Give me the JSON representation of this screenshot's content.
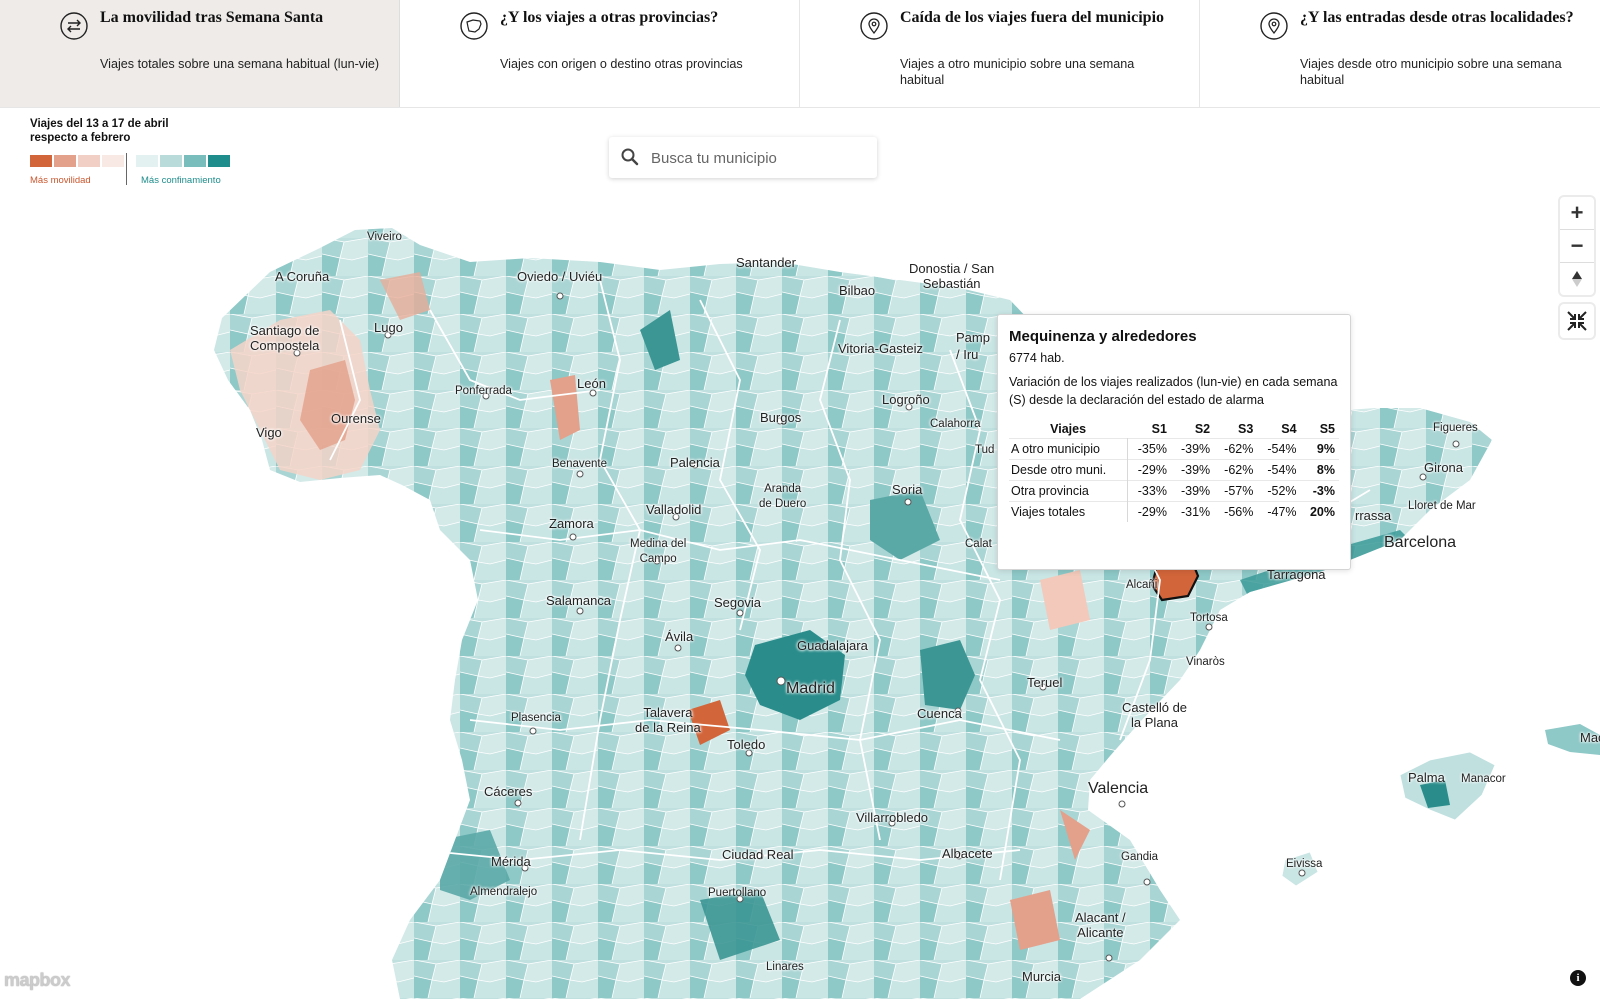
{
  "tabs": [
    {
      "title": "La movilidad tras Semana Santa",
      "sub": "Viajes totales sobre una semana habitual (lun-vie)",
      "icon": "arrows-exchange-icon"
    },
    {
      "title": "¿Y los viajes a otras provincias?",
      "sub": "Viajes con origen o destino otras provincias",
      "icon": "spain-map-icon"
    },
    {
      "title": "Caída de los viajes fuera del municipio",
      "sub": "Viajes a otro municipio sobre una semana habitual",
      "icon": "location-pin-icon"
    },
    {
      "title": "¿Y las entradas desde otras localidades?",
      "sub": "Viajes desde otro municipio sobre una semana habitual",
      "icon": "location-pin-icon"
    }
  ],
  "legend": {
    "title": "Viajes del 13 a 17 de abril respecto a febrero",
    "left_label": "Más movilidad",
    "right_label": "Más confinamiento",
    "colors": [
      "#d2653a",
      "#e3a08a",
      "#f1cfc4",
      "#f8e9e4",
      "#e4f1f1",
      "#b9dcdb",
      "#79bebd",
      "#1f8d8c"
    ]
  },
  "search": {
    "placeholder": "Busca tu municipio"
  },
  "cities": {
    "viveiro": "Viveiro",
    "acoruna": "A Coruña",
    "oviedo": "Oviedo / Uviéu",
    "santander": "Santander",
    "donostia": "Donostia / San\nSebastián",
    "bilbao": "Bilbao",
    "santiago": "Santiago de\nCompostela",
    "lugo": "Lugo",
    "vitoria": "Vitoria-Gasteiz",
    "pamplona": "Pamp\n/ Iru",
    "ponferrada": "Ponferrada",
    "leon": "León",
    "logrono": "Logroño",
    "ourense": "Ourense",
    "vigo": "Vigo",
    "burgos": "Burgos",
    "calahorra": "Calahorra",
    "tudela": "Tud",
    "figueres": "Figueres",
    "girona": "Girona",
    "benavente": "Benavente",
    "palencia": "Palencia",
    "aranda": "Aranda\nde Duero",
    "soria": "Soria",
    "lloret": "Lloret de Mar",
    "terrassa": "rrassa",
    "valladolid": "Valladolid",
    "zamora": "Zamora",
    "medina": "Medina del\nCampo",
    "calatayud": "Calat",
    "barcelona": "Barcelona",
    "alcaniz": "Alcañi",
    "tarragona": "Tarragona",
    "salamanca": "Salamanca",
    "segovia": "Segovia",
    "tortosa": "Tortosa",
    "avila": "Ávila",
    "guadalajara": "Guadalajara",
    "vinaros": "Vinaròs",
    "teruel": "Teruel",
    "madrid": "Madrid",
    "castello": "Castelló de\nla Plana",
    "plasencia": "Plasencia",
    "talavera": "Talavera\nde la Reina",
    "cuenca": "Cuenca",
    "toledo": "Toledo",
    "mahon": "Mac",
    "palma": "Palma",
    "manacor": "Manacor",
    "caceres": "Cáceres",
    "valencia": "Valencia",
    "villarrobledo": "Villarrobledo",
    "merida": "Mérida",
    "ciudadreal": "Ciudad Real",
    "albacete": "Albacete",
    "gandia": "Gandia",
    "eivissa": "Eivissa",
    "almendralejo": "Almendralejo",
    "puertollano": "Puertollano",
    "alacant": "Alacant /\nAlicante",
    "linares": "Linares",
    "murcia": "Murcia"
  },
  "popup": {
    "title": "Mequinenza y alrededores",
    "population": "6774 hab.",
    "description": "Variación de los viajes realizados (lun-vie) en cada semana (S) desde la declaración del estado de alarma",
    "headers": [
      "Viajes",
      "S1",
      "S2",
      "S3",
      "S4",
      "S5"
    ],
    "rows": [
      [
        "A otro municipio",
        "-35%",
        "-39%",
        "-62%",
        "-54%",
        "9%"
      ],
      [
        "Desde otro muni.",
        "-29%",
        "-39%",
        "-62%",
        "-54%",
        "8%"
      ],
      [
        "Otra provincia",
        "-33%",
        "-39%",
        "-57%",
        "-52%",
        "-3%"
      ],
      [
        "Viajes totales",
        "-29%",
        "-31%",
        "-56%",
        "-47%",
        "20%"
      ]
    ]
  },
  "attribution": {
    "logo": "mapbox",
    "info": "i"
  }
}
